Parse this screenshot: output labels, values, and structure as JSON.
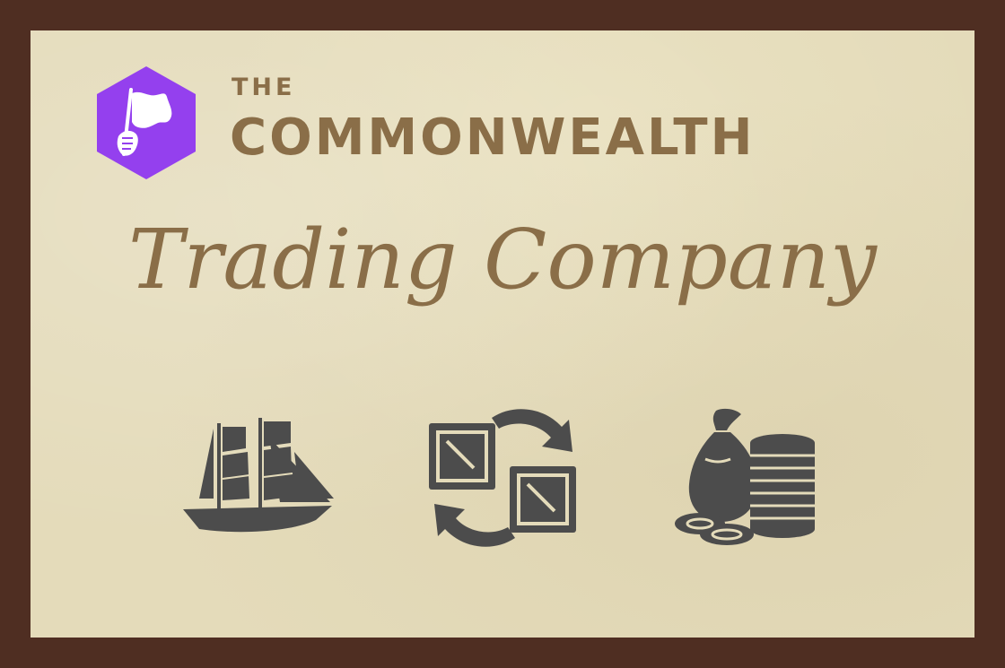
{
  "header": {
    "pretitle": "THE",
    "title": "COMMONWEALTH"
  },
  "tagline": "Trading Company",
  "colors": {
    "frame": "#4f2e22",
    "parchment": "#e4dbba",
    "text": "#8a6e48",
    "logo": "#9440ee",
    "icons": "#4c4c4c"
  },
  "icons": [
    "sailing-ship-icon",
    "exchange-boxes-icon",
    "money-bag-coins-icon"
  ]
}
